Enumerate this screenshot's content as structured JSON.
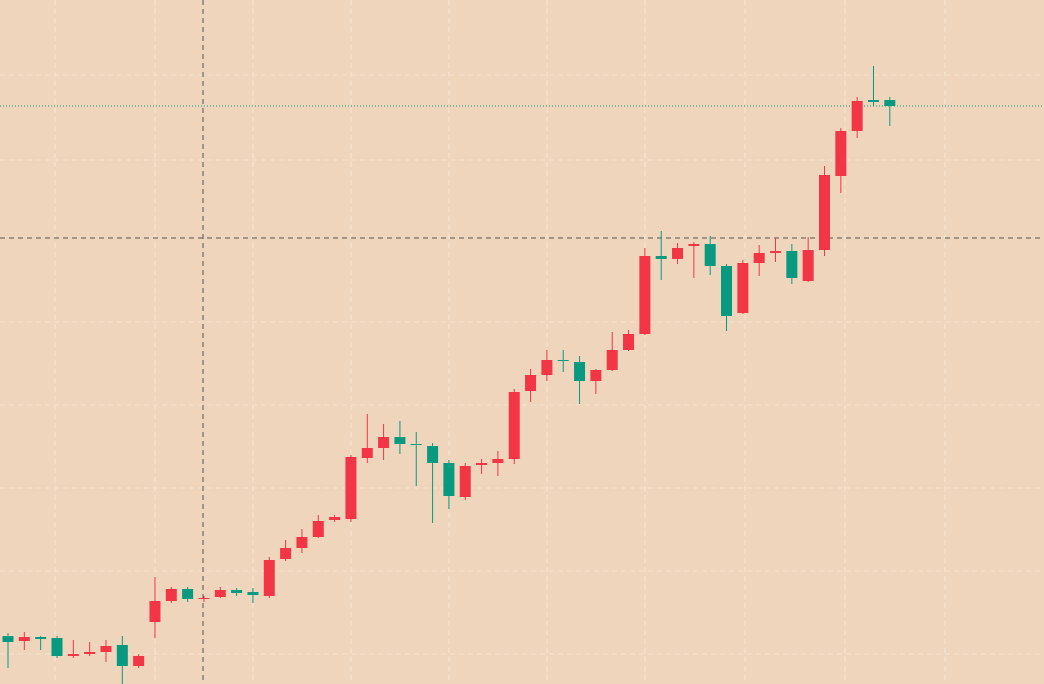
{
  "chart_data": {
    "type": "candlestick",
    "up_color": "#f23645",
    "down_color": "#089981",
    "ylim": [
      0,
      684
    ],
    "open": [
      48,
      43,
      47,
      46,
      28,
      30,
      32,
      39,
      18,
      62,
      83,
      95,
      85,
      87,
      94,
      92,
      88,
      125,
      136,
      147,
      164,
      165,
      226,
      236,
      247,
      240,
      238,
      221,
      187,
      219,
      221,
      225,
      293,
      309,
      324,
      322,
      303,
      314,
      334,
      350,
      428,
      425,
      438,
      440,
      418,
      371,
      421,
      431,
      433,
      403,
      434,
      508,
      553,
      584,
      584
    ],
    "high": [
      51,
      52,
      48,
      48,
      44,
      42,
      44,
      48,
      30,
      107,
      97,
      97,
      88,
      97,
      96,
      96,
      127,
      144,
      155,
      169,
      169,
      229,
      270,
      260,
      263,
      252,
      241,
      224,
      221,
      225,
      233,
      295,
      315,
      334,
      334,
      328,
      315,
      352,
      354,
      436,
      453,
      441,
      442,
      448,
      420,
      424,
      439,
      446,
      440,
      447,
      518,
      556,
      587,
      618,
      587
    ],
    "low": [
      16,
      34,
      34,
      26,
      26,
      28,
      22,
      0,
      16,
      46,
      81,
      82,
      82,
      86,
      88,
      81,
      86,
      123,
      131,
      146,
      162,
      162,
      221,
      224,
      230,
      198,
      161,
      175,
      184,
      210,
      208,
      220,
      282,
      303,
      312,
      280,
      290,
      313,
      333,
      349,
      404,
      420,
      406,
      409,
      353,
      370,
      408,
      422,
      400,
      402,
      428,
      491,
      546,
      578,
      558
    ],
    "close": [
      42,
      47,
      45,
      28,
      30,
      32,
      38,
      18,
      28,
      83,
      95,
      85,
      86,
      94,
      91,
      89,
      124,
      136,
      147,
      163,
      167,
      227,
      236,
      247,
      240,
      239,
      221,
      188,
      218,
      221,
      225,
      292,
      309,
      324,
      323,
      303,
      314,
      334,
      350,
      428,
      425,
      436,
      440,
      418,
      368,
      421,
      431,
      433,
      406,
      434,
      509,
      553,
      583,
      582,
      578
    ],
    "last_price_line": {
      "value": 578,
      "color": "#089981"
    },
    "crosshair": {
      "value": 446
    }
  }
}
